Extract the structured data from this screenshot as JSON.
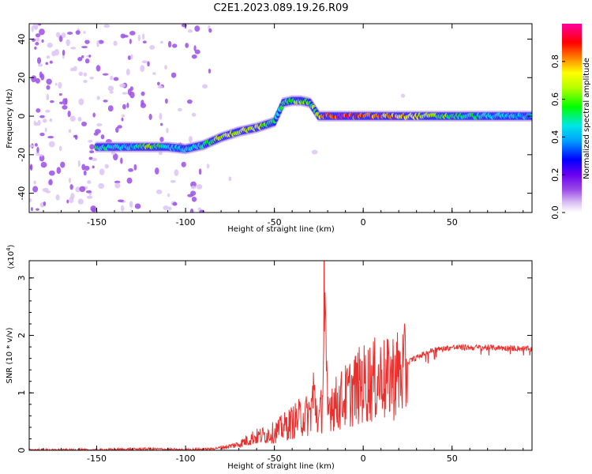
{
  "title": "C2E1.2023.089.19.26.R09",
  "chart_data": [
    {
      "type": "heatmap",
      "xlabel": "Height of straight line (km)",
      "ylabel": "Frequency (Hz)",
      "xlim": [
        -188,
        95
      ],
      "ylim": [
        -50,
        48
      ],
      "xticks": [
        -150,
        -100,
        -50,
        0,
        50
      ],
      "yticks": [
        -40,
        -20,
        0,
        20,
        40
      ],
      "colorbar": {
        "label": "Normalized spectral amplitude",
        "range": [
          0.0,
          1.0
        ],
        "ticks": [
          0.0,
          0.2,
          0.4,
          0.6,
          0.8
        ],
        "colormap": [
          "#ffffff",
          "#dcc4f4",
          "#9b4de6",
          "#6a00f0",
          "#0000ff",
          "#00a0ff",
          "#00e6e6",
          "#00ff00",
          "#b4ff00",
          "#ffff00",
          "#ff8000",
          "#ff0000",
          "#ff00a0"
        ]
      },
      "ridge": {
        "x": [
          -150,
          -140,
          -130,
          -120,
          -110,
          -100,
          -90,
          -80,
          -70,
          -60,
          -50,
          -45,
          -40,
          -35,
          -30,
          -25,
          -20,
          -10,
          0,
          10,
          20,
          50,
          95
        ],
        "y": [
          -16,
          -16,
          -16,
          -16,
          -16,
          -17,
          -15,
          -11,
          -8,
          -6,
          -3,
          7,
          8,
          8,
          7,
          0,
          0,
          0,
          0,
          0,
          0,
          0,
          0
        ],
        "amplitude": [
          0.55,
          0.55,
          0.5,
          0.7,
          0.5,
          0.5,
          0.55,
          0.7,
          0.75,
          0.75,
          0.6,
          0.6,
          0.65,
          0.65,
          0.65,
          0.7,
          0.95,
          0.95,
          0.9,
          0.9,
          0.85,
          0.6,
          0.45
        ]
      }
    },
    {
      "type": "line",
      "xlabel": "Height of straight line (km)",
      "ylabel": "SNR (10 * v/v)",
      "ylabel_multiplier": "(x10^4)",
      "multiplier_base": "(x10",
      "multiplier_exp": "4",
      "multiplier_close": ")",
      "xlim": [
        -188,
        95
      ],
      "ylim": [
        0,
        3.3
      ],
      "xticks": [
        -150,
        -100,
        -50,
        0,
        50
      ],
      "yticks": [
        0,
        1,
        2,
        3
      ],
      "color": "#e8312f",
      "series": [
        {
          "x": [
            -188,
            -150,
            -120,
            -100,
            -85,
            -75,
            -70,
            -62,
            -55,
            -50,
            -45,
            -40,
            -35,
            -30,
            -28,
            -25,
            -23,
            -22,
            -21,
            -20,
            -18,
            -15,
            -10,
            -5,
            0,
            5,
            10,
            11,
            12,
            15,
            20,
            25,
            30,
            35,
            40,
            50,
            60,
            70,
            80,
            90,
            95
          ],
          "y": [
            0.01,
            0.01,
            0.03,
            0.01,
            0.03,
            0.08,
            0.12,
            0.25,
            0.3,
            0.35,
            0.45,
            0.55,
            0.65,
            0.7,
            1.1,
            0.55,
            0.9,
            3.3,
            1.6,
            0.7,
            1.0,
            0.9,
            1.05,
            1.2,
            1.3,
            1.35,
            1.4,
            1.8,
            1.25,
            1.45,
            1.5,
            1.55,
            1.62,
            1.7,
            1.76,
            1.8,
            1.8,
            1.8,
            1.79,
            1.78,
            1.77
          ]
        }
      ]
    }
  ]
}
